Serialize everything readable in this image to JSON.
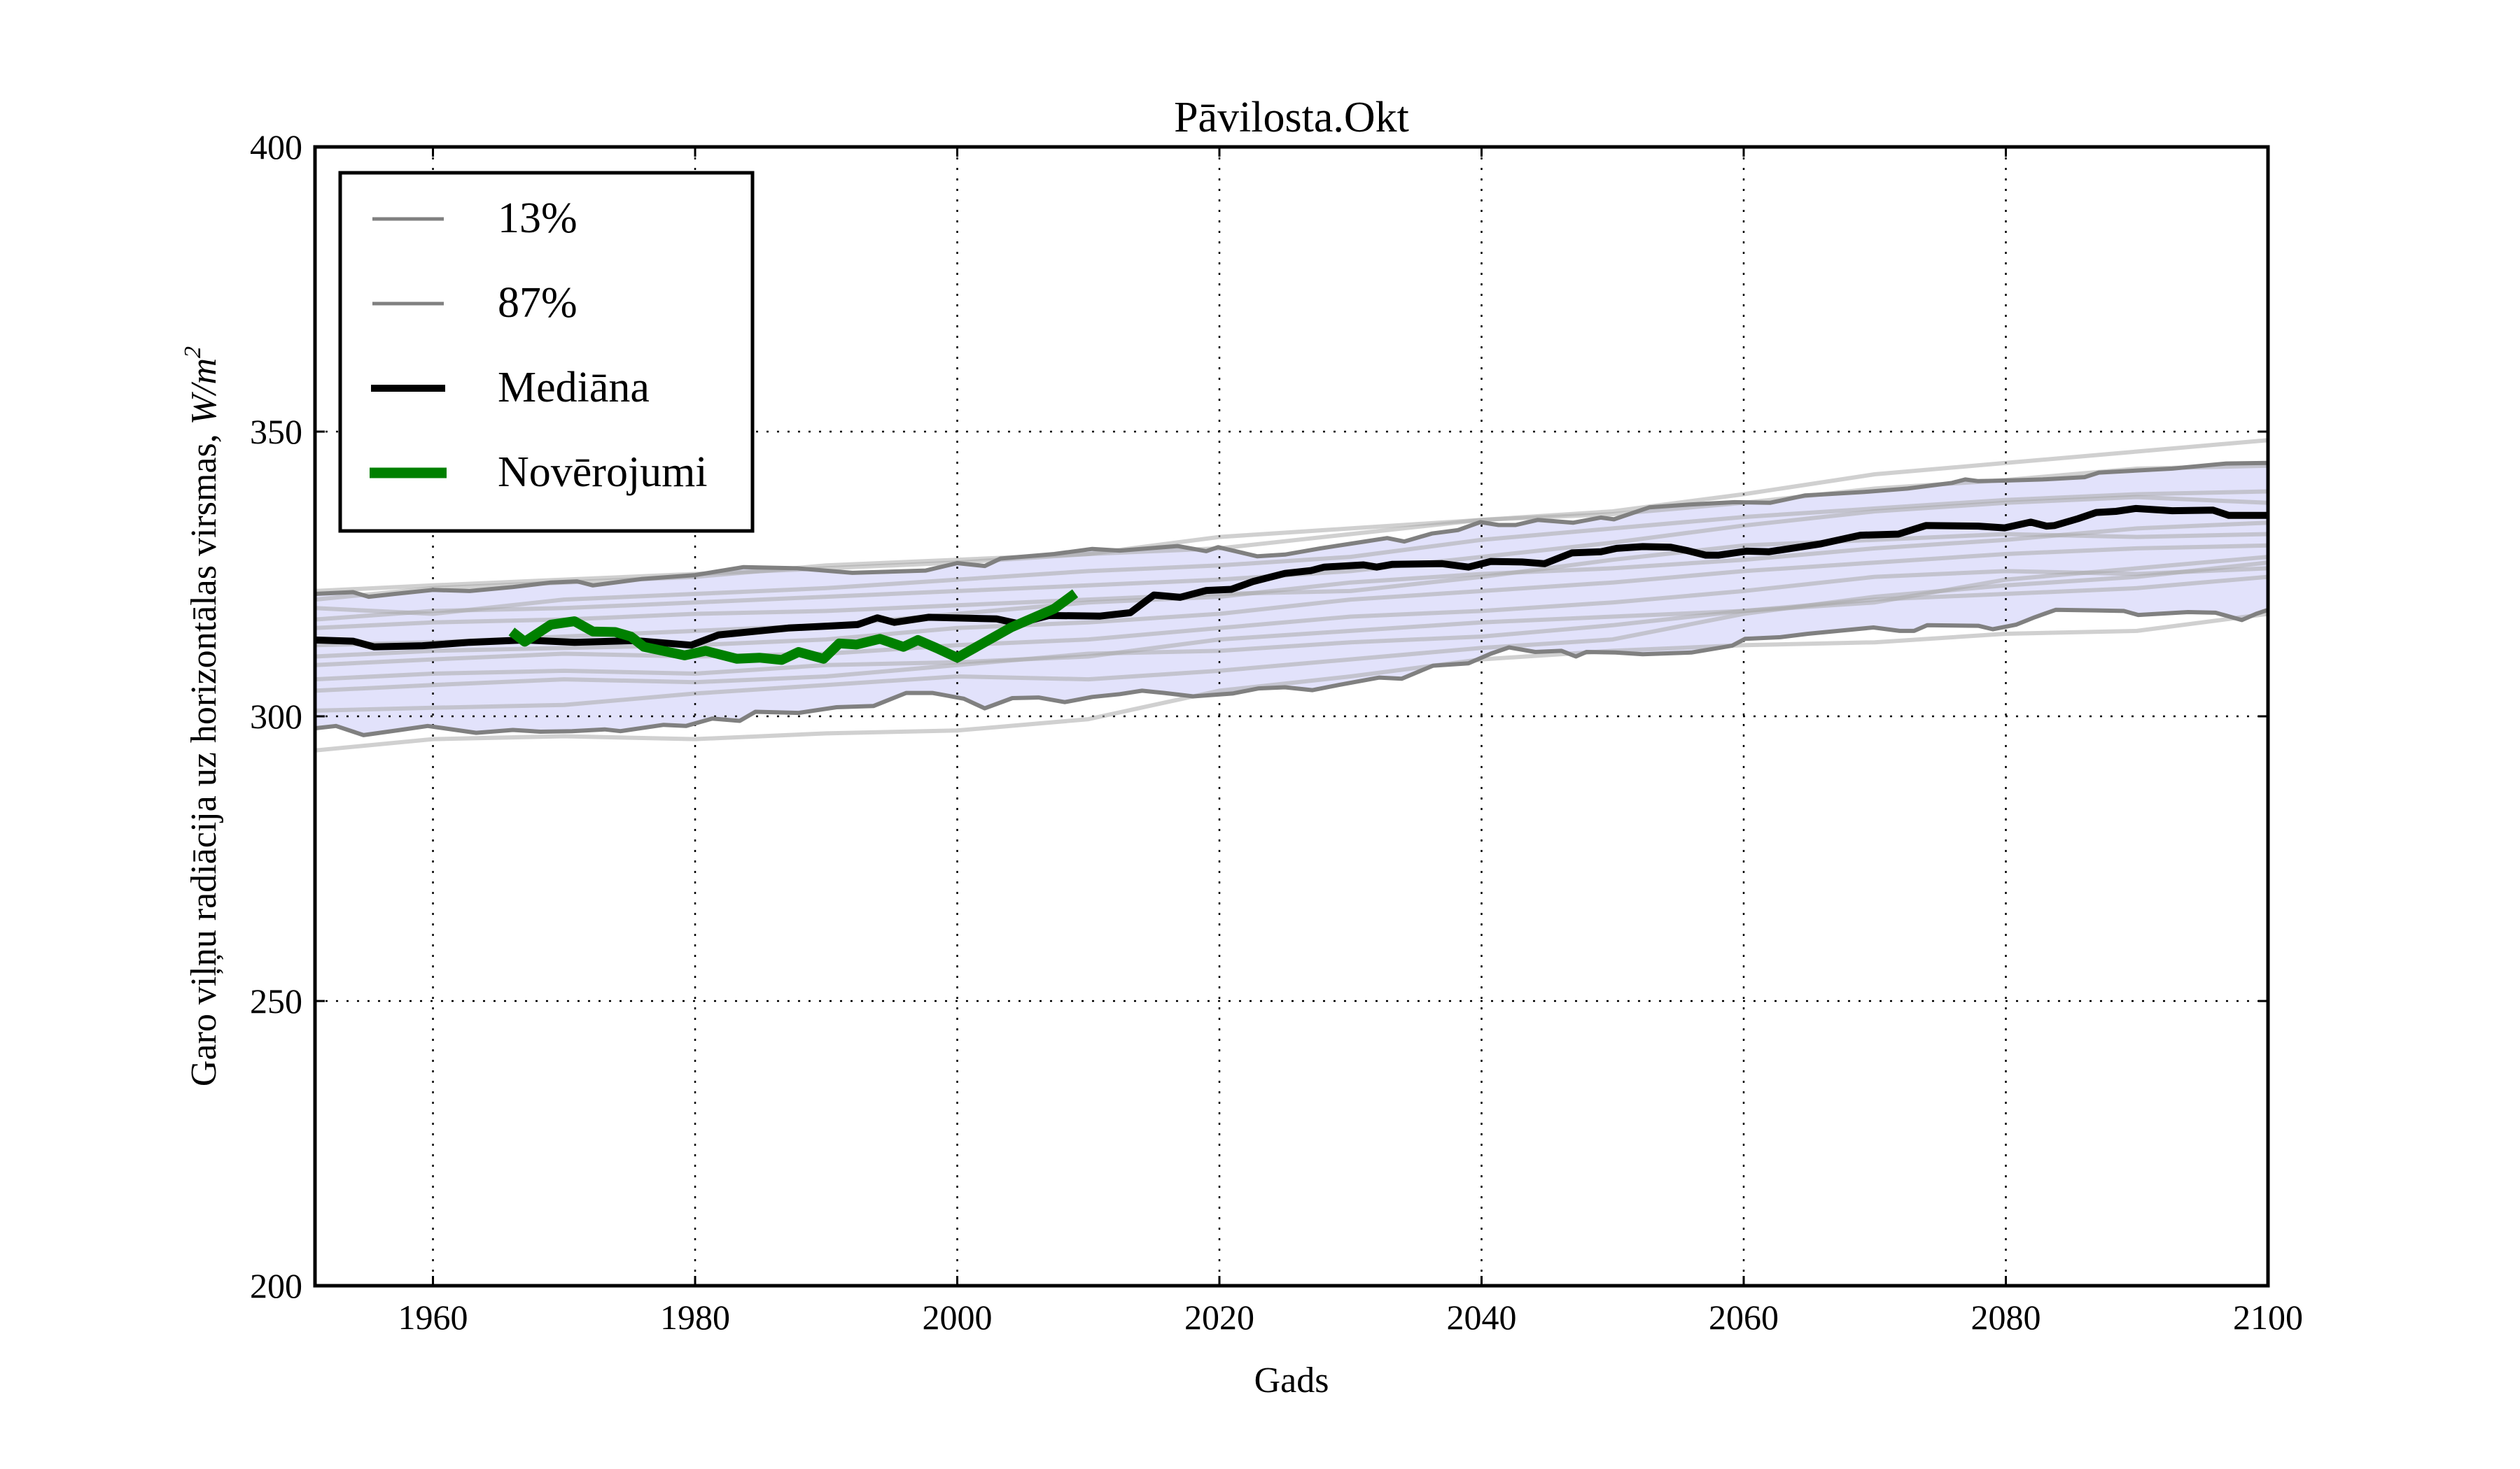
{
  "chart_data": {
    "type": "line",
    "title": "Pāvilosta.Okt",
    "xlabel": "Gads",
    "ylabel": "Garo viļņu radiācija uz horizontālas virsmas, ",
    "ylabel_unit": "W/m",
    "ylabel_unit_sup": "2",
    "xlim": [
      1951,
      2100
    ],
    "ylim": [
      200,
      400
    ],
    "xticks": [
      1960,
      1980,
      2000,
      2020,
      2040,
      2060,
      2080,
      2100
    ],
    "yticks": [
      200,
      250,
      300,
      350,
      400
    ],
    "grid": true,
    "legend_position": "top-left",
    "colors": {
      "band_fill": "#e2e2fb",
      "band_line": "#808080",
      "member": "#aaaaaa",
      "median": "#000000",
      "observations": "#008000"
    },
    "legend": [
      {
        "label": "13%",
        "key": "p13"
      },
      {
        "label": "87%",
        "key": "p87"
      },
      {
        "label": "Mediāna",
        "key": "median"
      },
      {
        "label": "Novērojumi",
        "key": "obs"
      }
    ],
    "series": [
      {
        "name": "13%",
        "key": "p13",
        "x": [
          1951,
          1952.6,
          1954.7,
          1957.5,
          1959.6,
          1963.3,
          1966.1,
          1968.2,
          1970.6,
          1973.1,
          1974.3,
          1977.6,
          1979.3,
          1981.3,
          1983.4,
          1984.6,
          1987.9,
          1990.8,
          1993.6,
          1996.1,
          1998.1,
          2000.5,
          2002.1,
          2004.2,
          2006.2,
          2008.2,
          2010.3,
          2012.4,
          2014.1,
          2015.8,
          2018,
          2021,
          2023,
          2025,
          2027.1,
          2029.1,
          2032.2,
          2033.9,
          2036.3,
          2039,
          2040.7,
          2042.1,
          2044.1,
          2046.1,
          2047.2,
          2048,
          2050.2,
          2052.3,
          2056,
          2059.1,
          2060.1,
          2062.8,
          2064.9,
          2069.9,
          2071.9,
          2073,
          2074,
          2077.9,
          2079,
          2080.8,
          2082.2,
          2083.8,
          2086.9,
          2089,
          2090.1,
          2093.9,
          2096,
          2098,
          2099.1,
          2100
        ],
        "values": [
          297.9,
          298.3,
          296.7,
          297.6,
          298.3,
          297.1,
          297.6,
          297.3,
          297.4,
          297.7,
          297.4,
          298.5,
          298.3,
          299.6,
          299.2,
          300.8,
          300.6,
          301.6,
          301.8,
          304.1,
          304.1,
          303.1,
          301.4,
          303.2,
          303.3,
          302.5,
          303.4,
          303.9,
          304.5,
          304.1,
          303.5,
          304.0,
          304.9,
          305.1,
          304.6,
          305.5,
          306.8,
          306.6,
          308.9,
          309.3,
          311.0,
          312.1,
          311.3,
          311.5,
          310.5,
          311.3,
          311.2,
          310.9,
          311.2,
          312.4,
          313.6,
          313.9,
          314.5,
          315.6,
          315.0,
          315.0,
          316.0,
          315.9,
          315.3,
          316.1,
          317.4,
          318.7,
          318.6,
          318.5,
          317.8,
          318.3,
          318.2,
          316.9,
          318.0,
          318.7
        ]
      },
      {
        "name": "87%",
        "key": "p87",
        "x": [
          1951,
          1953.9,
          1955.1,
          1957.1,
          1960,
          1962.8,
          1966.1,
          1969,
          1971,
          1972.2,
          1975.9,
          1980,
          1983.7,
          1987.8,
          1992,
          1997.6,
          2000,
          2002.1,
          2003.3,
          2007.4,
          2010.3,
          2012.4,
          2016.8,
          2019,
          2019.9,
          2022.9,
          2025,
          2027.7,
          2031.1,
          2032.8,
          2034.1,
          2036.2,
          2038.2,
          2039.9,
          2041.3,
          2042.6,
          2044.3,
          2047,
          2049.1,
          2050.1,
          2052.8,
          2055.9,
          2059.3,
          2062,
          2064.7,
          2069.2,
          2072.5,
          2075.9,
          2076.9,
          2077.9,
          2079.9,
          2082.8,
          2086,
          2087.1,
          2092.7,
          2096.8,
          2100
        ],
        "values": [
          321.5,
          321.8,
          321.0,
          321.5,
          322.2,
          322.0,
          322.7,
          323.5,
          323.7,
          323.0,
          324.1,
          324.8,
          326.2,
          326.0,
          325.2,
          325.6,
          326.9,
          326.4,
          327.7,
          328.5,
          329.4,
          329.1,
          329.9,
          329.0,
          329.7,
          328.1,
          328.4,
          329.5,
          330.7,
          331.3,
          330.7,
          332.1,
          332.7,
          334.1,
          333.6,
          333.6,
          334.5,
          334.0,
          334.9,
          334.6,
          336.7,
          337.2,
          337.6,
          337.5,
          338.8,
          339.4,
          340.0,
          341.0,
          341.6,
          341.3,
          341.4,
          341.6,
          342.0,
          342.8,
          343.5,
          344.4,
          344.5
        ]
      },
      {
        "name": "Mediāna",
        "key": "median",
        "x": [
          1951,
          1953.9,
          1955.5,
          1959.2,
          1962.8,
          1967,
          1970.8,
          1975.4,
          1979.7,
          1981.8,
          1987.1,
          1992.4,
          1993.9,
          1995.2,
          1997.8,
          2003,
          2004.6,
          2007,
          2010.9,
          2013.2,
          2015,
          2017,
          2019,
          2020.9,
          2022.6,
          2025,
          2027,
          2028,
          2031,
          2032,
          2033.2,
          2037,
          2039,
          2040.7,
          2043.1,
          2044.8,
          2046.9,
          2049.1,
          2050.3,
          2052.3,
          2054.4,
          2055.7,
          2057.1,
          2058.1,
          2060.2,
          2061.9,
          2065.9,
          2068.9,
          2071.8,
          2073.9,
          2077.9,
          2079.9,
          2081.9,
          2083.1,
          2083.7,
          2085.5,
          2086.9,
          2088.4,
          2089.9,
          2092.7,
          2095.8,
          2097,
          2100
        ],
        "values": [
          313.4,
          313.2,
          312.2,
          312.4,
          313.0,
          313.4,
          313.0,
          313.3,
          312.5,
          314.3,
          315.5,
          316.1,
          317.3,
          316.5,
          317.4,
          317.1,
          316.3,
          317.7,
          317.6,
          318.2,
          321.3,
          320.9,
          322.1,
          322.3,
          323.7,
          325.1,
          325.6,
          326.2,
          326.6,
          326.2,
          326.7,
          326.8,
          326.2,
          327.2,
          327.1,
          326.8,
          328.7,
          328.9,
          329.5,
          329.8,
          329.7,
          329.1,
          328.3,
          328.3,
          329.0,
          328.9,
          330.3,
          331.8,
          332.0,
          333.5,
          333.4,
          333.1,
          334.1,
          333.4,
          333.5,
          334.7,
          335.8,
          336.0,
          336.5,
          336.1,
          336.2,
          335.3,
          335.3
        ]
      },
      {
        "name": "Novērojumi",
        "key": "obs",
        "x": [
          1966,
          1967,
          1969,
          1970.8,
          1972.2,
          1973.9,
          1975.1,
          1976.1,
          1979.2,
          1980.8,
          1983.2,
          1984.9,
          1986.6,
          1987.9,
          1989.8,
          1991,
          1992.3,
          1994.1,
          1995.9,
          1997,
          1998.4,
          2000,
          2004.1,
          2007.4,
          2009
        ],
        "values": [
          314.9,
          313.1,
          316.1,
          316.7,
          314.9,
          314.8,
          314.0,
          312.2,
          310.7,
          311.5,
          310.1,
          310.3,
          309.9,
          311.3,
          310.1,
          312.8,
          312.6,
          313.6,
          312.2,
          313.4,
          312.0,
          310.3,
          315.6,
          318.9,
          321.6
        ]
      }
    ],
    "ensemble_members": [
      {
        "x": [
          1951,
          1960,
          1970,
          1980,
          1990,
          2000,
          2010,
          2020,
          2030,
          2040,
          2050,
          2060,
          2070,
          2080,
          2090,
          2100
        ],
        "values": [
          294.0,
          296.0,
          296.5,
          296.0,
          297.0,
          297.5,
          299.5,
          304.5,
          307.0,
          310.0,
          311.5,
          312.5,
          313.0,
          314.5,
          315.0,
          318.0
        ]
      },
      {
        "x": [
          1951,
          1960,
          1970,
          1980,
          1990,
          2000,
          2010,
          2020,
          2030,
          2040,
          2050,
          2060,
          2070,
          2080,
          2090,
          2100
        ],
        "values": [
          301.0,
          301.5,
          302.0,
          304.0,
          305.5,
          307.0,
          306.5,
          308.0,
          310.0,
          312.0,
          313.5,
          318.0,
          321.0,
          323.0,
          324.5,
          327.0
        ]
      },
      {
        "x": [
          1951,
          1960,
          1970,
          1980,
          1990,
          2000,
          2010,
          2020,
          2030,
          2040,
          2050,
          2060,
          2070,
          2080,
          2090,
          2100
        ],
        "values": [
          304.5,
          305.5,
          306.5,
          306.0,
          307.0,
          309.0,
          311.0,
          311.5,
          313.0,
          314.0,
          316.0,
          318.5,
          320.5,
          321.5,
          322.5,
          324.5
        ]
      },
      {
        "x": [
          1951,
          1960,
          1970,
          1980,
          1990,
          2000,
          2010,
          2020,
          2030,
          2040,
          2050,
          2060,
          2070,
          2080,
          2090,
          2100
        ],
        "values": [
          306.5,
          307.5,
          308.0,
          307.5,
          309.0,
          309.5,
          310.5,
          313.5,
          315.0,
          316.5,
          317.5,
          318.5,
          320.0,
          324.0,
          326.0,
          328.0
        ]
      },
      {
        "x": [
          1951,
          1960,
          1970,
          1980,
          1990,
          2000,
          2010,
          2020,
          2030,
          2040,
          2050,
          2060,
          2070,
          2080,
          2090,
          2100
        ],
        "values": [
          309.0,
          310.0,
          311.0,
          310.5,
          311.0,
          312.5,
          313.5,
          315.5,
          317.5,
          318.5,
          320.0,
          322.0,
          324.5,
          325.5,
          325.0,
          326.0
        ]
      },
      {
        "x": [
          1951,
          1960,
          1970,
          1980,
          1990,
          2000,
          2010,
          2020,
          2030,
          2040,
          2050,
          2060,
          2070,
          2080,
          2090,
          2100
        ],
        "values": [
          310.5,
          311.5,
          312.0,
          312.5,
          313.5,
          315.5,
          316.5,
          318.0,
          320.5,
          322.0,
          323.5,
          325.5,
          327.0,
          328.5,
          329.5,
          330.0
        ]
      },
      {
        "x": [
          1951,
          1960,
          1970,
          1980,
          1990,
          2000,
          2010,
          2020,
          2030,
          2040,
          2050,
          2060,
          2070,
          2080,
          2090,
          2100
        ],
        "values": [
          315.5,
          316.5,
          317.0,
          318.0,
          318.5,
          319.5,
          320.5,
          321.5,
          322.0,
          324.5,
          327.5,
          330.0,
          331.0,
          332.0,
          331.5,
          332.0
        ]
      },
      {
        "x": [
          1951,
          1960,
          1970,
          1980,
          1990,
          2000,
          2010,
          2020,
          2030,
          2040,
          2050,
          2060,
          2070,
          2080,
          2090,
          2100
        ],
        "values": [
          317.0,
          318.5,
          319.0,
          320.0,
          321.0,
          322.0,
          323.0,
          324.0,
          325.5,
          328.0,
          330.5,
          333.5,
          336.0,
          337.5,
          338.5,
          337.5
        ]
      },
      {
        "x": [
          1951,
          1960,
          1970,
          1980,
          1990,
          2000,
          2010,
          2020,
          2030,
          2040,
          2050,
          2060,
          2070,
          2080,
          2090,
          2100
        ],
        "values": [
          319.0,
          318.0,
          320.5,
          321.5,
          322.5,
          324.0,
          325.5,
          326.5,
          328.0,
          331.0,
          333.0,
          335.0,
          336.5,
          338.0,
          339.0,
          339.5
        ]
      },
      {
        "x": [
          1951,
          1960,
          1970,
          1980,
          1990,
          2000,
          2010,
          2020,
          2030,
          2040,
          2050,
          2060,
          2070,
          2080,
          2090,
          2100
        ],
        "values": [
          322.0,
          323.0,
          324.0,
          325.0,
          326.0,
          327.0,
          328.5,
          329.5,
          332.0,
          334.5,
          335.5,
          337.5,
          340.0,
          341.5,
          343.5,
          344.0
        ]
      },
      {
        "x": [
          1951,
          1960,
          1970,
          1980,
          1990,
          2000,
          2010,
          2020,
          2030,
          2040,
          2050,
          2060,
          2070,
          2080,
          2090,
          2100
        ],
        "values": [
          320.5,
          322.5,
          323.5,
          324.5,
          326.5,
          327.5,
          328.5,
          331.5,
          333.0,
          334.5,
          336.0,
          339.0,
          342.5,
          344.5,
          346.5,
          348.5
        ]
      },
      {
        "x": [
          1951,
          1960,
          1970,
          1980,
          1990,
          2000,
          2010,
          2020,
          2030,
          2040,
          2050,
          2060,
          2070,
          2080,
          2090,
          2100
        ],
        "values": [
          312.5,
          313.0,
          314.0,
          315.0,
          316.0,
          318.0,
          320.0,
          321.0,
          323.5,
          325.0,
          326.0,
          327.5,
          329.5,
          331.0,
          333.0,
          334.0
        ]
      }
    ]
  }
}
